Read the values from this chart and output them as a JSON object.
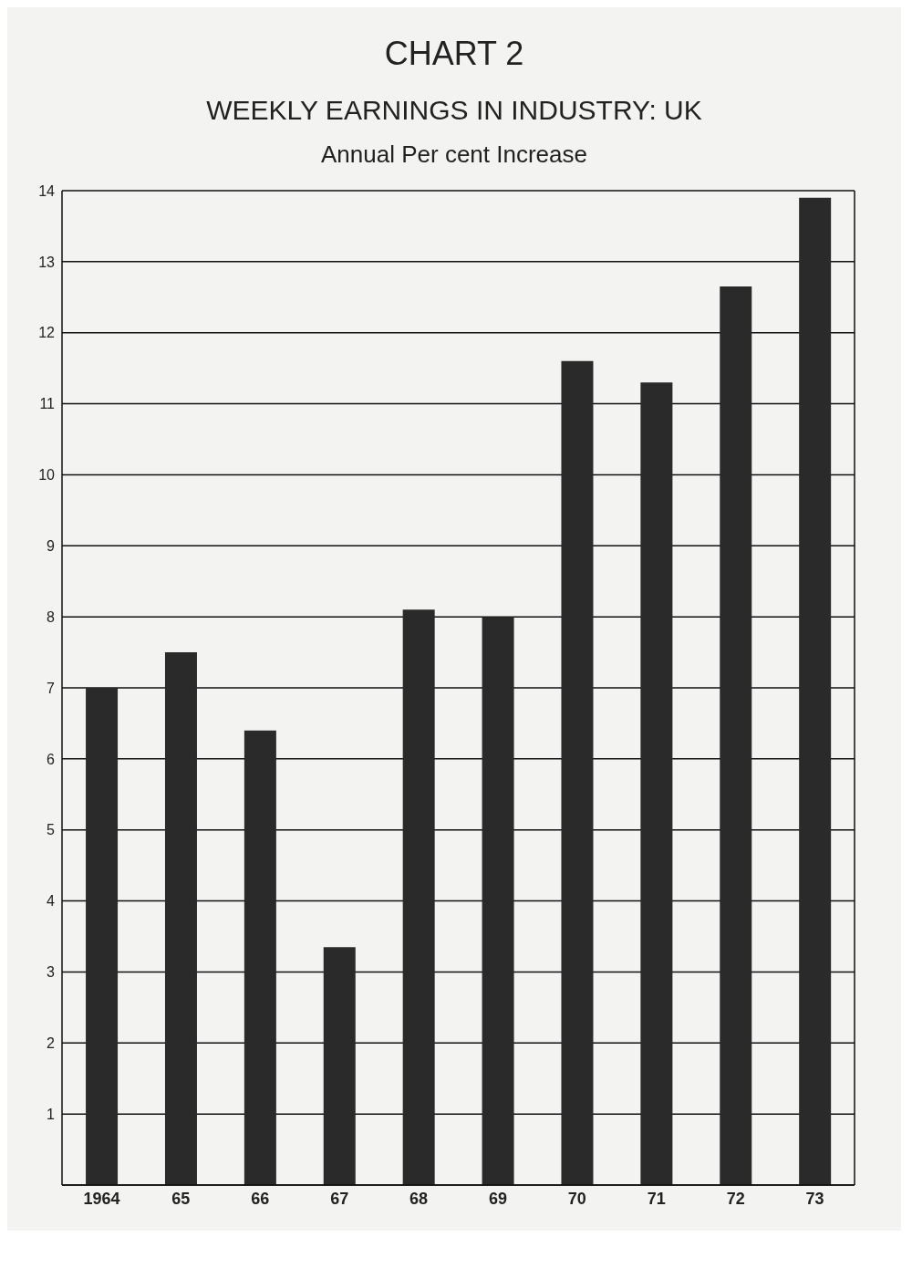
{
  "chart_data": {
    "type": "bar",
    "title": "CHART 2",
    "subtitle": "WEEKLY EARNINGS IN INDUSTRY: UK",
    "ylabel": "Annual Per cent Increase",
    "categories": [
      "1964",
      "65",
      "66",
      "67",
      "68",
      "69",
      "70",
      "71",
      "72",
      "73"
    ],
    "values": [
      7.0,
      7.5,
      6.4,
      3.35,
      8.1,
      8.0,
      11.6,
      11.3,
      12.65,
      13.9
    ],
    "color": "#2b2a2a",
    "ylim": [
      0,
      14
    ],
    "yticks": [
      1,
      2,
      3,
      4,
      5,
      6,
      7,
      8,
      9,
      10,
      11,
      12,
      13,
      14
    ],
    "grid": "y"
  }
}
